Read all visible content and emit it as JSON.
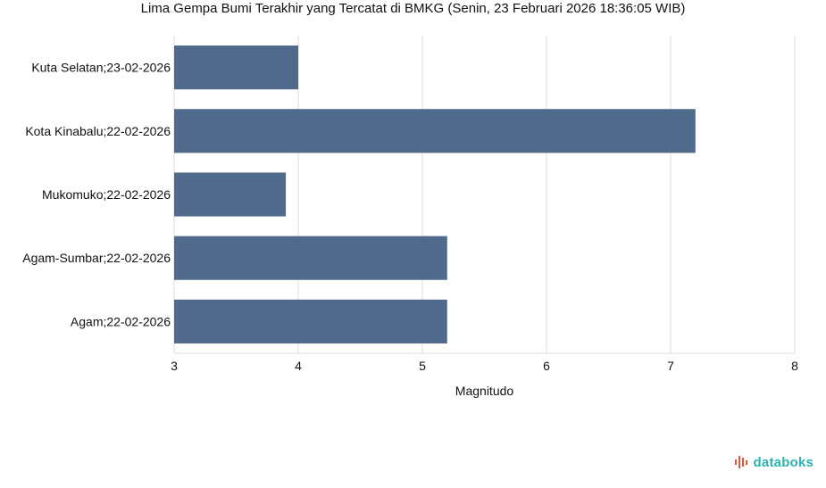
{
  "chart_data": {
    "type": "bar",
    "orientation": "horizontal",
    "title": "Lima Gempa Bumi Terakhir yang Tercatat di BMKG (Senin, 23 Februari 2026 18:36:05 WIB)",
    "categories": [
      "Kuta Selatan;23-02-2026",
      "Kota Kinabalu;22-02-2026",
      "Mukomuko;22-02-2026",
      "Agam-Sumbar;22-02-2026",
      "Agam;22-02-2026"
    ],
    "values": [
      4.0,
      7.2,
      3.9,
      5.2,
      5.2
    ],
    "xlabel": "Magnitudo",
    "ylabel": "",
    "xlim": [
      3,
      8
    ],
    "xticks": [
      "3",
      "4",
      "5",
      "6",
      "7",
      "8"
    ],
    "grid": true,
    "bar_color": "#4f6a8a"
  },
  "brand": {
    "text": "databoks",
    "color": "#2bb3b0",
    "icon_color": "#e8553f"
  }
}
